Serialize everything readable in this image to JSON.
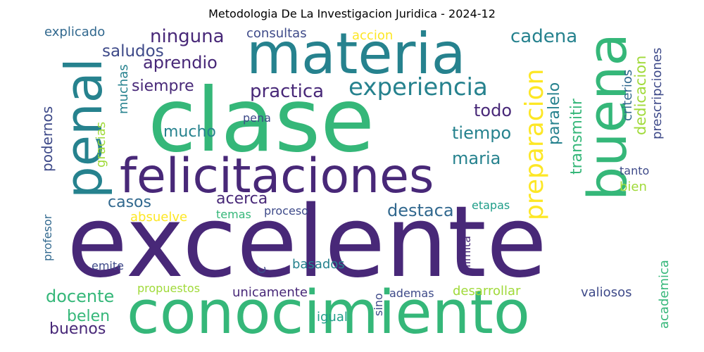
{
  "title": "Metodologia De La Investigacion Juridica - 2024-12",
  "palette": {
    "dark_purple": "#482878",
    "indigo": "#3e4a89",
    "blue": "#31688e",
    "teal": "#26828e",
    "cyan": "#1f9e89",
    "green": "#35b779",
    "lime": "#a0da39",
    "yellow": "#fde725"
  },
  "words": [
    {
      "text": "excelente"
    },
    {
      "text": "clase"
    },
    {
      "text": "conocimiento"
    },
    {
      "text": "materia"
    },
    {
      "text": "felicitaciones"
    },
    {
      "text": "buena"
    },
    {
      "text": "penal"
    },
    {
      "text": "experiencia"
    },
    {
      "text": "preparacion"
    },
    {
      "text": "practica"
    },
    {
      "text": "ninguna"
    },
    {
      "text": "cadena"
    },
    {
      "text": "aprendio"
    },
    {
      "text": "saludos"
    },
    {
      "text": "siempre"
    },
    {
      "text": "mucho"
    },
    {
      "text": "todo"
    },
    {
      "text": "tiempo"
    },
    {
      "text": "maria"
    },
    {
      "text": "destaca"
    },
    {
      "text": "acerca"
    },
    {
      "text": "casos"
    },
    {
      "text": "docente"
    },
    {
      "text": "belen"
    },
    {
      "text": "buenos"
    },
    {
      "text": "paralelo"
    },
    {
      "text": "transmitir"
    },
    {
      "text": "dedicacion"
    },
    {
      "text": "criterios"
    },
    {
      "text": "prescripciones"
    },
    {
      "text": "muchas"
    },
    {
      "text": "gracias"
    },
    {
      "text": "podernos"
    },
    {
      "text": "profesor"
    },
    {
      "text": "explicado"
    },
    {
      "text": "consultas"
    },
    {
      "text": "accion"
    },
    {
      "text": "pena"
    },
    {
      "text": "tanto"
    },
    {
      "text": "bien"
    },
    {
      "text": "absuelve"
    },
    {
      "text": "temas"
    },
    {
      "text": "proceso"
    },
    {
      "text": "etapas"
    },
    {
      "text": "limita"
    },
    {
      "text": "basados"
    },
    {
      "text": "emite"
    },
    {
      "text": "propuestos"
    },
    {
      "text": "unicamente"
    },
    {
      "text": "ademas"
    },
    {
      "text": "desarrollar"
    },
    {
      "text": "valiosos"
    },
    {
      "text": "academica"
    },
    {
      "text": "igual"
    },
    {
      "text": "sino"
    },
    {
      "text": "c"
    }
  ]
}
